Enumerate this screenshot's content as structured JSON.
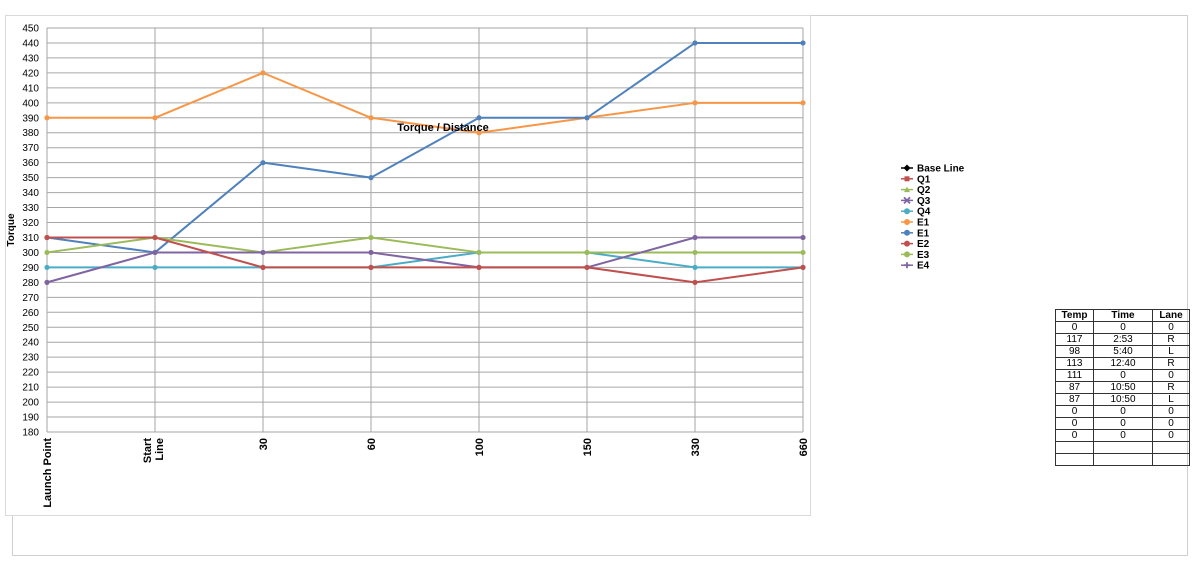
{
  "chart_data": {
    "type": "line",
    "title": "Torque / Distance",
    "ylabel": "Torque",
    "xlabel": "",
    "ylim": [
      180,
      450
    ],
    "ytick_step": 10,
    "grid": true,
    "legend_position": "right",
    "categories": [
      "Launch Point",
      "Start Line",
      "30",
      "60",
      "100",
      "150",
      "330",
      "660"
    ],
    "legend": [
      {
        "name": "Base Line",
        "color": "#000000",
        "marker": "diamond"
      },
      {
        "name": "Q1",
        "color": "#c0504d",
        "marker": "square"
      },
      {
        "name": "Q2",
        "color": "#9bbb59",
        "marker": "triangle"
      },
      {
        "name": "Q3",
        "color": "#8064a2",
        "marker": "x"
      },
      {
        "name": "Q4",
        "color": "#4bacc6",
        "marker": "star"
      },
      {
        "name": "E1",
        "color": "#f79646",
        "marker": "circle"
      },
      {
        "name": "E1",
        "color": "#4f81bd",
        "marker": "circle"
      },
      {
        "name": "E2",
        "color": "#c0504d",
        "marker": "circle"
      },
      {
        "name": "E3",
        "color": "#9bbb59",
        "marker": "circle"
      },
      {
        "name": "E4",
        "color": "#8064a2",
        "marker": "cross"
      }
    ],
    "series": [
      {
        "name": "E1",
        "color": "#f79646",
        "values": [
          390,
          390,
          420,
          390,
          380,
          390,
          400,
          400
        ]
      },
      {
        "name": "E1",
        "color": "#4f81bd",
        "values": [
          310,
          300,
          360,
          350,
          390,
          390,
          440,
          440
        ]
      },
      {
        "name": "Q4",
        "color": "#4bacc6",
        "values": [
          290,
          290,
          290,
          290,
          300,
          300,
          290,
          290
        ]
      },
      {
        "name": "E3",
        "color": "#9bbb59",
        "values": [
          300,
          310,
          300,
          310,
          300,
          300,
          300,
          300
        ]
      },
      {
        "name": "E4",
        "color": "#8064a2",
        "values": [
          280,
          300,
          300,
          300,
          290,
          290,
          310,
          310
        ]
      },
      {
        "name": "E2",
        "color": "#c0504d",
        "values": [
          310,
          310,
          290,
          290,
          290,
          290,
          280,
          290
        ]
      }
    ]
  },
  "table": {
    "headers": [
      "Temp",
      "Time",
      "Lane"
    ],
    "rows": [
      [
        "0",
        "0",
        "0"
      ],
      [
        "117",
        "2:53",
        "R"
      ],
      [
        "98",
        "5:40",
        "L"
      ],
      [
        "113",
        "12:40",
        "R"
      ],
      [
        "111",
        "0",
        "0"
      ],
      [
        "87",
        "10:50",
        "R"
      ],
      [
        "87",
        "10:50",
        "L"
      ],
      [
        "0",
        "0",
        "0"
      ],
      [
        "0",
        "0",
        "0"
      ],
      [
        "0",
        "0",
        "0"
      ],
      [
        "",
        "",
        ""
      ],
      [
        "",
        "",
        ""
      ]
    ]
  }
}
